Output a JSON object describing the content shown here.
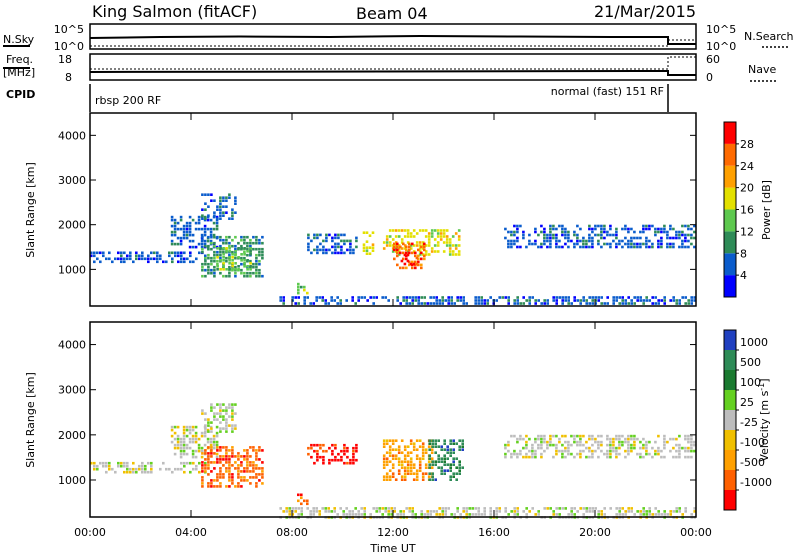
{
  "header": {
    "title": "King Salmon (fitACF)",
    "beam": "Beam 04",
    "date": "21/Mar/2015"
  },
  "top_panels": {
    "nsky_label": "N.Sky",
    "nsky_ticks": [
      "10^5",
      "10^0"
    ],
    "nsearch_label": "N.Search",
    "nsearch_ticks": [
      "10^5",
      "10^0"
    ],
    "freq_label": "Freq.",
    "freq_unit": "[MHz]",
    "freq_ticks": [
      "18",
      "8"
    ],
    "nave_label": "Nave",
    "nave_ticks": [
      "60",
      "0"
    ],
    "cpid_label": "CPID",
    "cpid_left": "rbsp 200 RF",
    "cpid_right": "normal (fast) 151 RF"
  },
  "chart_data": [
    {
      "type": "heatmap",
      "name": "power",
      "xlabel": "",
      "ylabel": "Slant Range [km]",
      "x_ticks": [
        "00:00",
        "04:00",
        "08:00",
        "12:00",
        "16:00",
        "20:00",
        "00:00"
      ],
      "y_ticks": [
        1000,
        2000,
        3000,
        4000
      ],
      "xlim_hours": [
        0,
        24
      ],
      "ylim_km": [
        180,
        4500
      ],
      "colorbar": {
        "label": "Power [dB]",
        "ticks": [
          "4",
          "8",
          "12",
          "16",
          "20",
          "24",
          "28"
        ],
        "colors": [
          "#0000ff",
          "#0a5ccc",
          "#2e8b57",
          "#5ec94f",
          "#e3e000",
          "#ffa000",
          "#ff6a00",
          "#ff0000"
        ]
      },
      "echo_regions": [
        {
          "t0": 0.0,
          "t1": 4.6,
          "r0": 1180,
          "r1": 1400,
          "level": 1
        },
        {
          "t0": 3.2,
          "t1": 5.0,
          "r0": 1500,
          "r1": 2200,
          "level": 1
        },
        {
          "t0": 4.4,
          "t1": 5.8,
          "r0": 2100,
          "r1": 2700,
          "level": 1
        },
        {
          "t0": 4.4,
          "t1": 6.8,
          "r0": 820,
          "r1": 1750,
          "level": 2
        },
        {
          "t0": 5.0,
          "t1": 6.4,
          "r0": 1000,
          "r1": 1500,
          "level": 3
        },
        {
          "t0": 8.2,
          "t1": 8.6,
          "r0": 450,
          "r1": 700,
          "level": 3
        },
        {
          "t0": 8.6,
          "t1": 10.6,
          "r0": 1350,
          "r1": 1800,
          "level": 1
        },
        {
          "t0": 10.8,
          "t1": 11.2,
          "r0": 1350,
          "r1": 1850,
          "level": 4
        },
        {
          "t0": 11.6,
          "t1": 14.6,
          "r0": 1300,
          "r1": 1900,
          "level": 4
        },
        {
          "t0": 12.0,
          "t1": 13.3,
          "r0": 1000,
          "r1": 1600,
          "level": 6
        },
        {
          "t0": 12.3,
          "t1": 12.9,
          "r0": 1100,
          "r1": 1350,
          "level": 7
        },
        {
          "t0": 16.4,
          "t1": 24.0,
          "r0": 1500,
          "r1": 2000,
          "level": 1
        },
        {
          "t0": 7.5,
          "t1": 24.0,
          "r0": 200,
          "r1": 400,
          "level": 1
        }
      ]
    },
    {
      "type": "heatmap",
      "name": "velocity",
      "xlabel": "Time UT",
      "ylabel": "Slant Range [km]",
      "x_ticks": [
        "00:00",
        "04:00",
        "08:00",
        "12:00",
        "16:00",
        "20:00",
        "00:00"
      ],
      "y_ticks": [
        1000,
        2000,
        3000,
        4000
      ],
      "xlim_hours": [
        0,
        24
      ],
      "ylim_km": [
        180,
        4500
      ],
      "colorbar": {
        "label": "Velocity [m s",
        "label_sup": "-1",
        "label_end": "]",
        "ticks": [
          "1000",
          "500",
          "100",
          "25",
          "-25",
          "-100",
          "-500",
          "-1000"
        ],
        "colors": [
          "#2040c0",
          "#2e8b57",
          "#1a7a30",
          "#64d020",
          "#bdbdbd",
          "#f0c000",
          "#ffa000",
          "#ff6000",
          "#ff0000"
        ]
      },
      "echo_regions": [
        {
          "t0": 0.0,
          "t1": 4.6,
          "r0": 1180,
          "r1": 1400,
          "level": 4
        },
        {
          "t0": 3.2,
          "t1": 5.0,
          "r0": 1500,
          "r1": 2200,
          "level": 4
        },
        {
          "t0": 4.4,
          "t1": 5.8,
          "r0": 2100,
          "r1": 2700,
          "level": 4
        },
        {
          "t0": 4.4,
          "t1": 6.8,
          "r0": 820,
          "r1": 1750,
          "level": 7
        },
        {
          "t0": 8.2,
          "t1": 8.6,
          "r0": 450,
          "r1": 700,
          "level": 7
        },
        {
          "t0": 8.6,
          "t1": 10.6,
          "r0": 1350,
          "r1": 1800,
          "level": 8
        },
        {
          "t0": 11.6,
          "t1": 13.6,
          "r0": 1000,
          "r1": 1900,
          "level": 6
        },
        {
          "t0": 13.4,
          "t1": 14.8,
          "r0": 1000,
          "r1": 1900,
          "level": 1
        },
        {
          "t0": 16.4,
          "t1": 24.0,
          "r0": 1500,
          "r1": 2000,
          "level": 4
        },
        {
          "t0": 7.5,
          "t1": 24.0,
          "r0": 200,
          "r1": 400,
          "level": 4
        }
      ]
    }
  ]
}
